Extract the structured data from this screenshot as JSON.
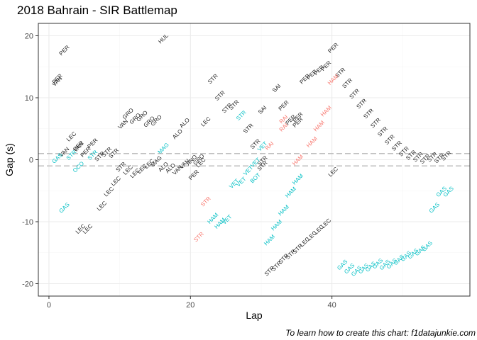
{
  "title": "2018 Bahrain - SIR Battlemap",
  "caption": "To learn how to create this chart: f1datajunkie.com",
  "colors": {
    "background": "#ffffff",
    "panel_border": "#333333",
    "grid_major": "#ebebeb",
    "grid_minor": "#f5f5f5",
    "dashed_line": "#bebebe",
    "black_labels": "#1a1a1a",
    "teal_labels": "#00bfc4",
    "red_labels": "#f8766d"
  },
  "chart_data": {
    "type": "scatter",
    "title": "2018 Bahrain - SIR Battlemap",
    "xlabel": "Lap",
    "ylabel": "Gap (s)",
    "xlim": [
      -1.5,
      59.5
    ],
    "ylim": [
      -22,
      22
    ],
    "x_ticks": [
      0,
      20,
      40
    ],
    "y_ticks": [
      -20,
      -10,
      0,
      10,
      20
    ],
    "grid": true,
    "reference_lines": [
      1,
      -1
    ],
    "series": [
      {
        "color": "#1a1a1a",
        "points": [
          {
            "x": 1.2,
            "y": 13,
            "label": "PER"
          },
          {
            "x": 1.2,
            "y": 12.6,
            "label": "VAN"
          },
          {
            "x": 2.2,
            "y": 17.6,
            "label": "PER"
          },
          {
            "x": 3.2,
            "y": 3.7,
            "label": "LEC"
          },
          {
            "x": 2.2,
            "y": 1.2,
            "label": "VAN"
          },
          {
            "x": 4.2,
            "y": 2,
            "label": "VAN"
          },
          {
            "x": 4.2,
            "y": 2.2,
            "label": "PER"
          },
          {
            "x": 5.2,
            "y": 1.2,
            "label": "PER"
          },
          {
            "x": 6.2,
            "y": 2.6,
            "label": "PER"
          },
          {
            "x": 7.2,
            "y": 0.5,
            "label": "STR"
          },
          {
            "x": 8.2,
            "y": 1.2,
            "label": "STR"
          },
          {
            "x": 9.2,
            "y": 1,
            "label": "STR"
          },
          {
            "x": 4.5,
            "y": -11.2,
            "label": "LEC"
          },
          {
            "x": 5.5,
            "y": -11.2,
            "label": "LEC"
          },
          {
            "x": 7.5,
            "y": -7.5,
            "label": "LEC"
          },
          {
            "x": 8.5,
            "y": -5.2,
            "label": "LEC"
          },
          {
            "x": 9.5,
            "y": -3.5,
            "label": "LEC"
          },
          {
            "x": 10.2,
            "y": -1.2,
            "label": "STR"
          },
          {
            "x": 11.2,
            "y": -1.7,
            "label": "LEC"
          },
          {
            "x": 12.2,
            "y": -2.2,
            "label": "LEC"
          },
          {
            "x": 13.2,
            "y": -1.5,
            "label": "LEC"
          },
          {
            "x": 14.2,
            "y": -0.7,
            "label": "LEC"
          },
          {
            "x": 15.2,
            "y": -0.3,
            "label": "MAG"
          },
          {
            "x": 16.2,
            "y": -1.2,
            "label": "ALO"
          },
          {
            "x": 17.2,
            "y": -1.4,
            "label": "ALO"
          },
          {
            "x": 18.2,
            "y": -1.7,
            "label": "VAN"
          },
          {
            "x": 19.2,
            "y": -0.7,
            "label": "VAN"
          },
          {
            "x": 20.2,
            "y": -0.1,
            "label": "ANO"
          },
          {
            "x": 20.5,
            "y": -2.5,
            "label": "PER"
          },
          {
            "x": 21.2,
            "y": 0,
            "label": "GRO"
          },
          {
            "x": 21.5,
            "y": -0.5,
            "label": "LEC"
          },
          {
            "x": 10.5,
            "y": 5.7,
            "label": "VAN"
          },
          {
            "x": 11.2,
            "y": 7.4,
            "label": "GRO"
          },
          {
            "x": 12.2,
            "y": 6.6,
            "label": "GRO"
          },
          {
            "x": 13.2,
            "y": 7,
            "label": "GRO"
          },
          {
            "x": 14.2,
            "y": 6.1,
            "label": "GRO"
          },
          {
            "x": 15.2,
            "y": 6.3,
            "label": "GRO"
          },
          {
            "x": 16.2,
            "y": 19.5,
            "label": "HUL"
          },
          {
            "x": 18.2,
            "y": 4.1,
            "label": "ALO"
          },
          {
            "x": 19.2,
            "y": 5.9,
            "label": "ALO"
          },
          {
            "x": 22.2,
            "y": 6.1,
            "label": "LEC"
          },
          {
            "x": 23.2,
            "y": 13,
            "label": "STR"
          },
          {
            "x": 24.2,
            "y": 10.3,
            "label": "STR"
          },
          {
            "x": 25.2,
            "y": 8.3,
            "label": "STR"
          },
          {
            "x": 26.2,
            "y": 8.8,
            "label": "STR"
          },
          {
            "x": 28.2,
            "y": 5,
            "label": "STR"
          },
          {
            "x": 29.2,
            "y": 2.5,
            "label": "STR"
          },
          {
            "x": 30.2,
            "y": -0.2,
            "label": "STR"
          },
          {
            "x": 30.2,
            "y": -1,
            "label": "STR"
          },
          {
            "x": 30.2,
            "y": 8,
            "label": "SAI"
          },
          {
            "x": 32.2,
            "y": 11.5,
            "label": "SAI"
          },
          {
            "x": 33.2,
            "y": 8.7,
            "label": "PER"
          },
          {
            "x": 34.2,
            "y": 6.4,
            "label": "PER"
          },
          {
            "x": 35.2,
            "y": 6.8,
            "label": "PER"
          },
          {
            "x": 35.2,
            "y": 6,
            "label": "PER"
          },
          {
            "x": 36.2,
            "y": 13,
            "label": "PER"
          },
          {
            "x": 37.2,
            "y": 13.7,
            "label": "PER"
          },
          {
            "x": 38.2,
            "y": 14.4,
            "label": "PER"
          },
          {
            "x": 39.2,
            "y": 15.1,
            "label": "PER"
          },
          {
            "x": 40.2,
            "y": 18,
            "label": "PER"
          },
          {
            "x": 41.2,
            "y": 14,
            "label": "STR"
          },
          {
            "x": 42.2,
            "y": 12.3,
            "label": "STR"
          },
          {
            "x": 43.2,
            "y": 10.6,
            "label": "STR"
          },
          {
            "x": 44.2,
            "y": 9,
            "label": "STR"
          },
          {
            "x": 45.2,
            "y": 7.4,
            "label": "STR"
          },
          {
            "x": 46.2,
            "y": 5.9,
            "label": "STR"
          },
          {
            "x": 47.2,
            "y": 4.5,
            "label": "STR"
          },
          {
            "x": 48.2,
            "y": 3.2,
            "label": "STR"
          },
          {
            "x": 49.2,
            "y": 2.2,
            "label": "STR"
          },
          {
            "x": 50.2,
            "y": 1.3,
            "label": "STR"
          },
          {
            "x": 51.2,
            "y": 0.7,
            "label": "STR"
          },
          {
            "x": 52.2,
            "y": 0.4,
            "label": "STR"
          },
          {
            "x": 53.2,
            "y": 0.1,
            "label": "STR"
          },
          {
            "x": 54.2,
            "y": 0.4,
            "label": "STR"
          },
          {
            "x": 55.2,
            "y": 0.2,
            "label": "STR"
          },
          {
            "x": 56.2,
            "y": 0.6,
            "label": "STR"
          },
          {
            "x": 40.2,
            "y": -2,
            "label": "LEC"
          },
          {
            "x": 31.2,
            "y": -18,
            "label": "STR"
          },
          {
            "x": 32.2,
            "y": -17.2,
            "label": "STR"
          },
          {
            "x": 33.2,
            "y": -16,
            "label": "STR"
          },
          {
            "x": 34.2,
            "y": -15.3,
            "label": "STR"
          },
          {
            "x": 35.2,
            "y": -14.4,
            "label": "STR"
          },
          {
            "x": 36.2,
            "y": -13.3,
            "label": "LEC"
          },
          {
            "x": 37.2,
            "y": -12.3,
            "label": "LEC"
          },
          {
            "x": 38.2,
            "y": -11.3,
            "label": "LEC"
          },
          {
            "x": 39.2,
            "y": -10.3,
            "label": "LEC"
          }
        ]
      },
      {
        "color": "#00bfc4",
        "points": [
          {
            "x": 1.2,
            "y": 0.2,
            "label": "GAS"
          },
          {
            "x": 2.2,
            "y": -7.8,
            "label": "GAS"
          },
          {
            "x": 3.2,
            "y": 0.7,
            "label": "STR"
          },
          {
            "x": 4.2,
            "y": -1.2,
            "label": "OCO"
          },
          {
            "x": 6.2,
            "y": 0.7,
            "label": "STR"
          },
          {
            "x": 16.2,
            "y": 1.8,
            "label": "MAG"
          },
          {
            "x": 27.2,
            "y": 7.1,
            "label": "STR"
          },
          {
            "x": 26.2,
            "y": -3.9,
            "label": "VET"
          },
          {
            "x": 27.2,
            "y": -3.6,
            "label": "VET"
          },
          {
            "x": 28.2,
            "y": -1.8,
            "label": "VET"
          },
          {
            "x": 29.2,
            "y": -0.5,
            "label": "VET"
          },
          {
            "x": 30.2,
            "y": 2.1,
            "label": "VET"
          },
          {
            "x": 29.2,
            "y": -3,
            "label": "BOT"
          },
          {
            "x": 23.2,
            "y": -9.5,
            "label": "HAM"
          },
          {
            "x": 24.2,
            "y": -10.3,
            "label": "HAM"
          },
          {
            "x": 25.2,
            "y": -9.7,
            "label": "VET"
          },
          {
            "x": 31.2,
            "y": -13,
            "label": "HAM"
          },
          {
            "x": 32.2,
            "y": -10.6,
            "label": "HAM"
          },
          {
            "x": 33.2,
            "y": -8.2,
            "label": "HAM"
          },
          {
            "x": 34.2,
            "y": -5.3,
            "label": "HAM"
          },
          {
            "x": 35.2,
            "y": -3.2,
            "label": "HAM"
          },
          {
            "x": 41.5,
            "y": -17,
            "label": "GAS"
          },
          {
            "x": 42.5,
            "y": -17.6,
            "label": "GAS"
          },
          {
            "x": 43.5,
            "y": -18,
            "label": "GAS"
          },
          {
            "x": 44.5,
            "y": -17.6,
            "label": "GAS"
          },
          {
            "x": 45.5,
            "y": -17.3,
            "label": "GAS"
          },
          {
            "x": 46.5,
            "y": -16.8,
            "label": "GAS"
          },
          {
            "x": 47.5,
            "y": -17,
            "label": "GAS"
          },
          {
            "x": 48.5,
            "y": -16.8,
            "label": "GAS"
          },
          {
            "x": 49.5,
            "y": -16.2,
            "label": "GAS"
          },
          {
            "x": 50.5,
            "y": -15.6,
            "label": "GAS"
          },
          {
            "x": 51.5,
            "y": -15.2,
            "label": "GAS"
          },
          {
            "x": 52.5,
            "y": -14.7,
            "label": "GAS"
          },
          {
            "x": 53.5,
            "y": -14,
            "label": "GAS"
          },
          {
            "x": 54.5,
            "y": -7.8,
            "label": "GAS"
          },
          {
            "x": 55.5,
            "y": -5.2,
            "label": "GAS"
          },
          {
            "x": 56.5,
            "y": -5.2,
            "label": "GAS"
          }
        ]
      },
      {
        "color": "#f8766d",
        "points": [
          {
            "x": 22.2,
            "y": -6.8,
            "label": "STR"
          },
          {
            "x": 21.2,
            "y": -12.5,
            "label": "STR"
          },
          {
            "x": 31.2,
            "y": 2.2,
            "label": "RAI"
          },
          {
            "x": 33.2,
            "y": 5.2,
            "label": "RAI"
          },
          {
            "x": 33.2,
            "y": 6.5,
            "label": "RAI"
          },
          {
            "x": 35.2,
            "y": -0.1,
            "label": "HAM"
          },
          {
            "x": 37.2,
            "y": 2.8,
            "label": "HAM"
          },
          {
            "x": 38.2,
            "y": 5.4,
            "label": "HAM"
          },
          {
            "x": 39.2,
            "y": 7.8,
            "label": "HAM"
          },
          {
            "x": 40.2,
            "y": 12.9,
            "label": "HAM"
          }
        ]
      }
    ]
  }
}
